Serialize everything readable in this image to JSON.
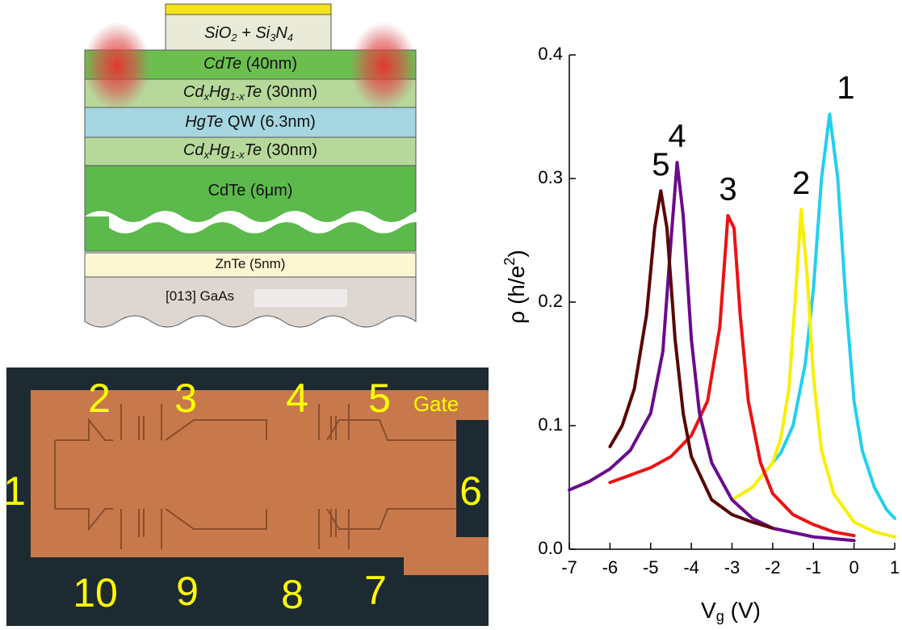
{
  "layers": [
    {
      "label": [
        {
          "text": "SiO",
          "style": "italic"
        },
        {
          "text": "2",
          "style": "sub"
        },
        {
          "text": " + Si",
          "style": "italic"
        },
        {
          "text": "3",
          "style": "sub"
        },
        {
          "text": "N",
          "style": "italic"
        },
        {
          "text": "4",
          "style": "sub"
        }
      ]
    },
    {
      "label": [
        {
          "text": "CdTe",
          "style": "italic"
        },
        {
          "text": " (40nm)",
          "style": "plain"
        }
      ]
    },
    {
      "label": [
        {
          "text": "Cd",
          "style": "italic"
        },
        {
          "text": "x",
          "style": "sub"
        },
        {
          "text": "Hg",
          "style": "italic"
        },
        {
          "text": "1-x",
          "style": "sub"
        },
        {
          "text": "Te",
          "style": "italic"
        },
        {
          "text": " (30nm)",
          "style": "plain"
        }
      ]
    },
    {
      "label": [
        {
          "text": "HgTe",
          "style": "italic"
        },
        {
          "text": " QW (6.3nm)",
          "style": "plain"
        }
      ]
    },
    {
      "label": [
        {
          "text": "Cd",
          "style": "italic"
        },
        {
          "text": "x",
          "style": "sub"
        },
        {
          "text": "Hg",
          "style": "italic"
        },
        {
          "text": "1-x",
          "style": "sub"
        },
        {
          "text": "Te",
          "style": "italic"
        },
        {
          "text": " (30nm)",
          "style": "plain"
        }
      ]
    },
    {
      "label": [
        {
          "text": "CdTe (6μm)",
          "style": "plain"
        }
      ]
    },
    {
      "label": [
        {
          "text": "ZnTe (5nm)",
          "style": "plain"
        }
      ]
    },
    {
      "label": [
        {
          "text": "[013] GaAs",
          "style": "plain"
        }
      ]
    }
  ],
  "photo": {
    "labels": [
      "1",
      "2",
      "3",
      "4",
      "5",
      "6",
      "7",
      "8",
      "9",
      "10",
      "Gate"
    ]
  },
  "chart_data": {
    "type": "line",
    "xlabel": [
      {
        "text": "V",
        "style": "plain"
      },
      {
        "text": "g",
        "style": "sub"
      },
      {
        "text": " (V)",
        "style": "plain"
      }
    ],
    "ylabel": [
      {
        "text": "ρ (h/e",
        "style": "plain"
      },
      {
        "text": "2",
        "style": "sup"
      },
      {
        "text": ")",
        "style": "plain"
      }
    ],
    "xlim": [
      -7,
      1
    ],
    "xticks": [
      -7,
      -6,
      -5,
      -4,
      -3,
      -2,
      -1,
      0,
      1
    ],
    "ylim": [
      0,
      0.4
    ],
    "yticks": [
      {
        "value": 0,
        "label": "0.0"
      },
      0.1,
      0.2,
      0.3,
      0.4
    ],
    "series": [
      {
        "name": "1",
        "color": "#22cff0",
        "x": [
          -2,
          -1.8,
          -1.5,
          -1.2,
          -1.0,
          -0.8,
          -0.6,
          -0.4,
          -0.2,
          0,
          0.2,
          0.5,
          0.8,
          1.0
        ],
        "values": [
          0.07,
          0.078,
          0.1,
          0.15,
          0.21,
          0.3,
          0.352,
          0.3,
          0.2,
          0.12,
          0.08,
          0.05,
          0.032,
          0.025
        ]
      },
      {
        "name": "2",
        "color": "#f8ef00",
        "x": [
          -3,
          -2.5,
          -2,
          -1.8,
          -1.6,
          -1.45,
          -1.3,
          -1.15,
          -1.0,
          -0.8,
          -0.5,
          0,
          0.5,
          1
        ],
        "values": [
          0.04,
          0.05,
          0.07,
          0.09,
          0.13,
          0.2,
          0.275,
          0.22,
          0.14,
          0.08,
          0.045,
          0.022,
          0.014,
          0.01
        ]
      },
      {
        "name": "3",
        "color": "#ee1111",
        "x": [
          -6,
          -5.5,
          -5,
          -4.5,
          -4,
          -3.6,
          -3.3,
          -3.1,
          -2.95,
          -2.8,
          -2.6,
          -2.3,
          -2,
          -1.5,
          -1,
          -0.5,
          0
        ],
        "values": [
          0.054,
          0.06,
          0.066,
          0.075,
          0.092,
          0.12,
          0.18,
          0.27,
          0.26,
          0.19,
          0.12,
          0.07,
          0.045,
          0.028,
          0.02,
          0.014,
          0.011
        ]
      },
      {
        "name": "4",
        "color": "#6a0a8c",
        "x": [
          -7,
          -6.5,
          -6,
          -5.5,
          -5,
          -4.7,
          -4.5,
          -4.35,
          -4.2,
          -4,
          -3.8,
          -3.5,
          -3,
          -2.5,
          -2,
          -1,
          0
        ],
        "values": [
          0.048,
          0.055,
          0.065,
          0.08,
          0.11,
          0.16,
          0.25,
          0.313,
          0.27,
          0.17,
          0.11,
          0.07,
          0.04,
          0.025,
          0.017,
          0.01,
          0.007
        ]
      },
      {
        "name": "5",
        "color": "#5a0505",
        "x": [
          -6,
          -5.7,
          -5.4,
          -5.1,
          -4.9,
          -4.75,
          -4.6,
          -4.4,
          -4.2,
          -4,
          -3.5,
          -3,
          -2.5,
          -2
        ],
        "values": [
          0.083,
          0.1,
          0.13,
          0.19,
          0.26,
          0.29,
          0.26,
          0.17,
          0.11,
          0.075,
          0.04,
          0.028,
          0.022,
          0.017
        ]
      }
    ]
  }
}
